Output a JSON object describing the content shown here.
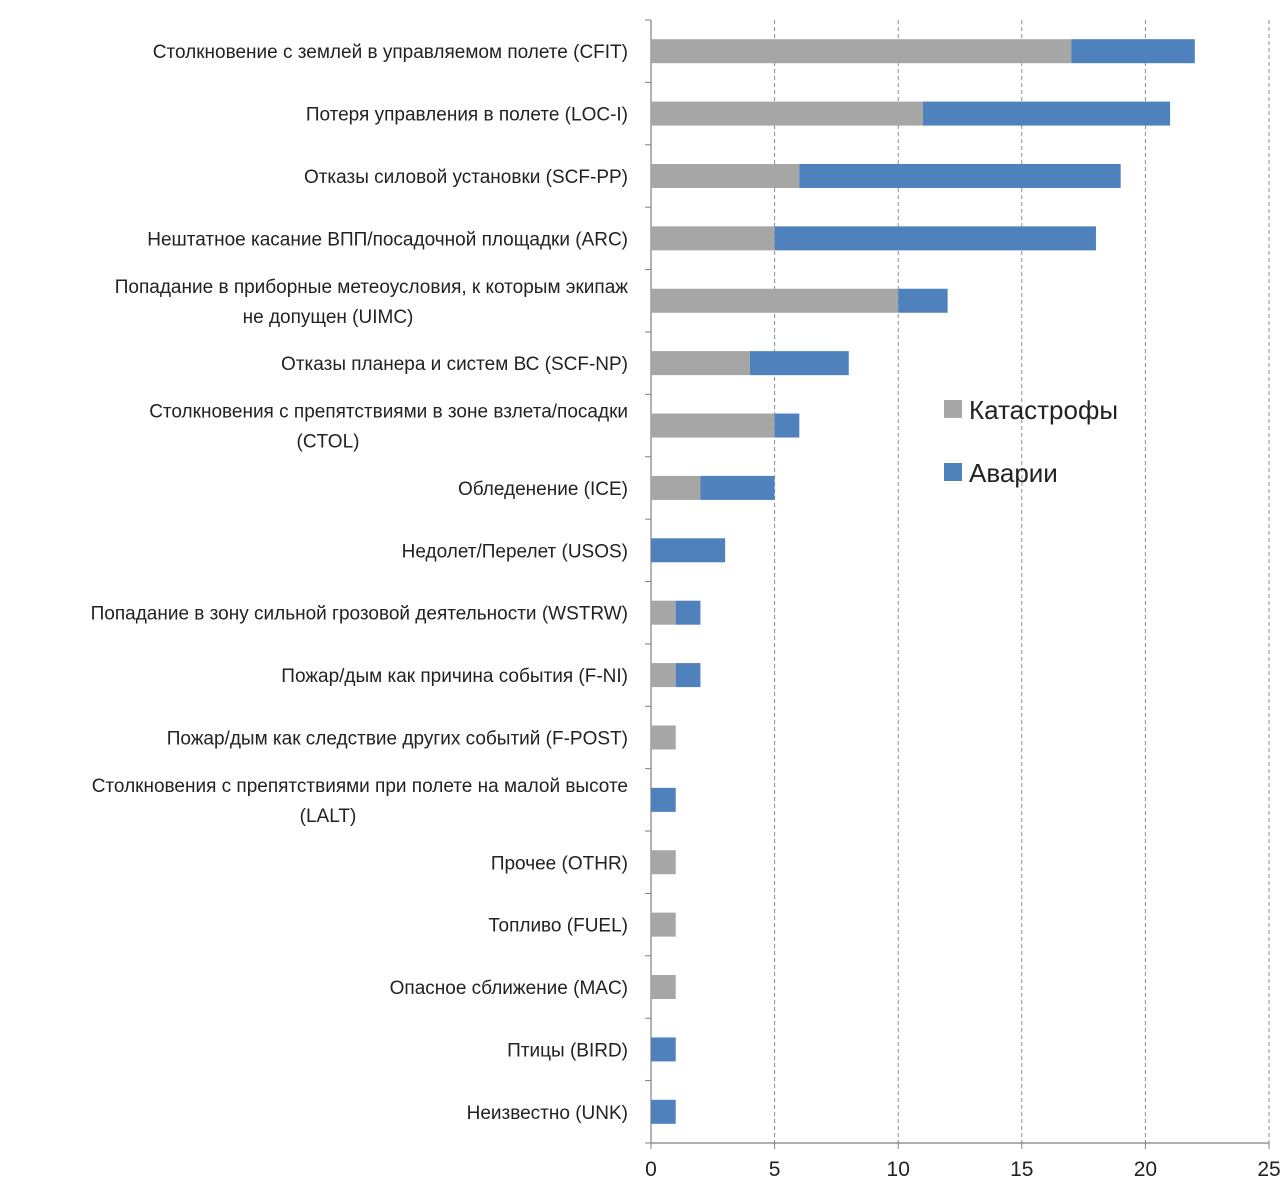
{
  "chart_data": {
    "type": "bar",
    "orientation": "horizontal",
    "stacked": true,
    "title": "",
    "xlabel": "",
    "ylabel": "",
    "xlim": [
      0,
      25
    ],
    "xticks": [
      0,
      5,
      10,
      15,
      20,
      25
    ],
    "grid": "vertical dashed",
    "legend_position": "right",
    "categories": [
      [
        "Столкновение с землей в управляемом полете (CFIT)"
      ],
      [
        "Потеря управления в полете (LOC-I)"
      ],
      [
        "Отказы силовой установки (SCF-PP)"
      ],
      [
        "Нештатное касание ВПП/посадочной площадки (ARC)"
      ],
      [
        "Попадание в приборные метеоусловия, к которым экипаж",
        "не допущен (UIMC)"
      ],
      [
        "Отказы планера и систем ВС (SCF-NP)"
      ],
      [
        "Столкновения с препятствиями в зоне взлета/посадки",
        "(CTOL)"
      ],
      [
        "Обледенение (ICE)"
      ],
      [
        "Недолет/Перелет (USOS)"
      ],
      [
        "Попадание в зону сильной грозовой деятельности (WSTRW)"
      ],
      [
        "Пожар/дым как причина события (F-NI)"
      ],
      [
        "Пожар/дым как следствие других событий (F-POST)"
      ],
      [
        "Столкновения с препятствиями при полете на малой высоте",
        "(LALT)"
      ],
      [
        "Прочее (OTHR)"
      ],
      [
        "Топливо (FUEL)"
      ],
      [
        "Опасное сближение (MAC)"
      ],
      [
        "Птицы (BIRD)"
      ],
      [
        "Неизвестно (UNK)"
      ]
    ],
    "series": [
      {
        "name": "Катастрофы",
        "color": "#a6a6a6",
        "values": [
          17,
          11,
          6,
          5,
          10,
          4,
          5,
          2,
          0,
          1,
          1,
          1,
          0,
          1,
          1,
          1,
          0,
          0
        ]
      },
      {
        "name": "Аварии",
        "color": "#4f81bd",
        "values": [
          5,
          10,
          13,
          13,
          2,
          4,
          1,
          3,
          3,
          1,
          1,
          0,
          1,
          0,
          0,
          0,
          1,
          1
        ]
      }
    ]
  }
}
